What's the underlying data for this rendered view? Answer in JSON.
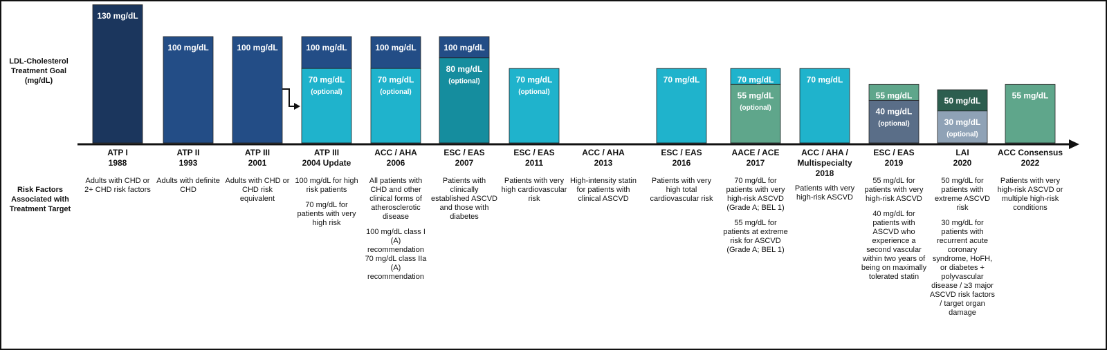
{
  "goal_label": "LDL-Cholesterol Treatment Goal (mg/dL)",
  "risk_label": "Risk Factors Associated with Treatment Target",
  "columns": [
    {
      "title": [
        "ATP I",
        "1988"
      ],
      "goals": [
        {
          "value": 130,
          "label": "130 mg/dL",
          "color": "#1b365d"
        }
      ],
      "risk": [
        "Adults with CHD or 2+ CHD risk factors"
      ]
    },
    {
      "title": [
        "ATP II",
        "1993"
      ],
      "goals": [
        {
          "value": 100,
          "label": "100 mg/dL",
          "color": "#234d86"
        }
      ],
      "risk": [
        "Adults with definite CHD"
      ]
    },
    {
      "title": [
        "ATP III",
        "2001"
      ],
      "goals": [
        {
          "value": 100,
          "label": "100 mg/dL",
          "color": "#234d86"
        }
      ],
      "risk": [
        "Adults with CHD or CHD risk equivalent"
      ]
    },
    {
      "title": [
        "ATP III",
        "2004 Update"
      ],
      "goals": [
        {
          "value": 100,
          "label": "100 mg/dL",
          "color": "#234d86"
        },
        {
          "value": 70,
          "label": "70 mg/dL",
          "note": "(optional)",
          "color": "#1fb3cc"
        }
      ],
      "risk": [
        "100 mg/dL for high risk patients",
        "70 mg/dL for patients with very high risk"
      ]
    },
    {
      "title": [
        "ACC / AHA",
        "2006"
      ],
      "goals": [
        {
          "value": 100,
          "label": "100 mg/dL",
          "color": "#234d86"
        },
        {
          "value": 70,
          "label": "70 mg/dL",
          "note": "(optional)",
          "color": "#1fb3cc"
        }
      ],
      "risk": [
        "All patients with CHD and other clinical forms of atherosclerotic disease",
        "100 mg/dL class I (A) recommendation 70 mg/dL class IIa (A) recommendation"
      ]
    },
    {
      "title": [
        "ESC / EAS",
        "2007"
      ],
      "goals": [
        {
          "value": 100,
          "label": "100 mg/dL",
          "color": "#234d86"
        },
        {
          "value": 80,
          "label": "80 mg/dL",
          "note": "(optional)",
          "color": "#158d9e"
        }
      ],
      "risk": [
        "Patients with clinically established ASCVD and those with diabetes"
      ]
    },
    {
      "title": [
        "ESC / EAS",
        "2011"
      ],
      "goals": [
        {
          "value": 70,
          "label": "70 mg/dL",
          "note": "(optional)",
          "color": "#1fb3cc"
        }
      ],
      "risk": [
        "Patients with very high cardiovascular risk"
      ]
    },
    {
      "title": [
        "ACC / AHA",
        "2013"
      ],
      "goals": [],
      "risk": [
        "High-intensity statin for patients with clinical ASCVD"
      ]
    },
    {
      "title": [
        "ESC / EAS",
        "2016"
      ],
      "goals": [
        {
          "value": 70,
          "label": "70 mg/dL",
          "color": "#1fb3cc"
        }
      ],
      "risk": [
        "Patients with very high total cardiovascular risk"
      ]
    },
    {
      "title": [
        "AACE / ACE",
        "2017"
      ],
      "goals": [
        {
          "value": 70,
          "label": "70 mg/dL",
          "color": "#1fb3cc"
        },
        {
          "value": 55,
          "label": "55 mg/dL",
          "note": "(optional)",
          "color": "#5fa68b"
        }
      ],
      "risk": [
        "70 mg/dL for patients with very high-risk ASCVD (Grade A; BEL 1)",
        "55 mg/dL for patients at extreme risk for ASCVD (Grade A; BEL 1)"
      ]
    },
    {
      "title": [
        "ACC / AHA /",
        "Multispecialty",
        "2018"
      ],
      "goals": [
        {
          "value": 70,
          "label": "70 mg/dL",
          "color": "#1fb3cc"
        }
      ],
      "risk": [
        "Patients with very high-risk ASCVD"
      ]
    },
    {
      "title": [
        "ESC / EAS",
        "2019"
      ],
      "goals": [
        {
          "value": 55,
          "label": "55 mg/dL",
          "color": "#5fa68b"
        },
        {
          "value": 40,
          "label": "40 mg/dL",
          "note": "(optional)",
          "color": "#5a6e88"
        }
      ],
      "risk": [
        "55 mg/dL for patients with very high-risk ASCVD",
        "40 mg/dL for patients with ASCVD who experience a second vascular within two years of being on maximally tolerated statin"
      ]
    },
    {
      "title": [
        "LAI",
        "2020"
      ],
      "goals": [
        {
          "value": 50,
          "label": "50 mg/dL",
          "color": "#2d5e4f"
        },
        {
          "value": 30,
          "label": "30 mg/dL",
          "note": "(optional)",
          "color": "#8fa2b6"
        }
      ],
      "risk": [
        "50 mg/dL for patients with extreme ASCVD risk",
        "30 mg/dL for patients with recurrent acute coronary syndrome, HoFH, or diabetes + polyvascular disease / ≥3 major ASCVD risk factors / target organ damage"
      ]
    },
    {
      "title": [
        "ACC Consensus",
        "2022"
      ],
      "goals": [
        {
          "value": 55,
          "label": "55 mg/dL",
          "color": "#5fa68b"
        }
      ],
      "risk": [
        "Patients with very high-risk ASCVD or multiple high-risk conditions"
      ]
    }
  ]
}
